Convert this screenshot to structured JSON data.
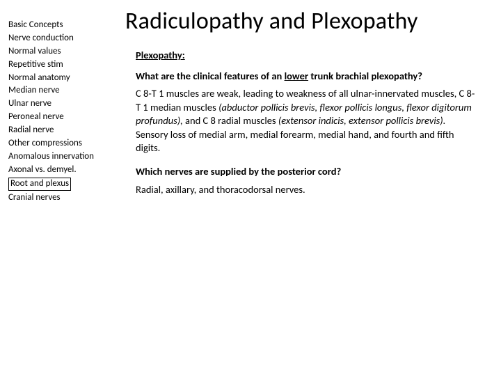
{
  "title": "Radiculopathy and Plexopathy",
  "sidebar": {
    "items": [
      {
        "label": "Basic Concepts",
        "selected": false
      },
      {
        "label": "Nerve conduction",
        "selected": false
      },
      {
        "label": "Normal values",
        "selected": false
      },
      {
        "label": "Repetitive stim",
        "selected": false
      },
      {
        "label": "Normal anatomy",
        "selected": false
      },
      {
        "label": "Median nerve",
        "selected": false
      },
      {
        "label": "Ulnar nerve",
        "selected": false
      },
      {
        "label": "Peroneal nerve",
        "selected": false
      },
      {
        "label": "Radial nerve",
        "selected": false
      },
      {
        "label": "Other compressions",
        "selected": false
      },
      {
        "label": "Anomalous innervation",
        "selected": false
      },
      {
        "label": "Axonal vs. demyel.",
        "selected": false
      },
      {
        "label": "Root and plexus",
        "selected": true
      },
      {
        "label": "Cranial nerves",
        "selected": false
      }
    ]
  },
  "content": {
    "section_label": "Plexopathy:",
    "q1_pre": "What are the clinical features of an ",
    "q1_ul": "lower",
    "q1_post": " trunk brachial plexopathy?",
    "a1_pre": "C 8-T 1 muscles are weak, leading to weakness of all ulnar-innervated muscles, C 8-T 1 median muscles ",
    "a1_it1": "(abductor pollicis brevis, flexor pollicis longus, flexor digitorum profundus),",
    "a1_mid": " and C 8 radial muscles ",
    "a1_it2": "(extensor indicis, extensor pollicis brevis).",
    "a1_post": " Sensory loss of medial arm, medial forearm, medial hand, and fourth and fifth digits.",
    "q2": "Which nerves are supplied by the posterior cord?",
    "a2": "Radial, axillary, and thoracodorsal nerves."
  },
  "colors": {
    "background": "#ffffff",
    "text": "#000000",
    "border": "#000000"
  },
  "typography": {
    "title_fontsize": 34,
    "body_fontsize": 14.5,
    "sidebar_fontsize": 13,
    "font_family": "Calibri"
  }
}
